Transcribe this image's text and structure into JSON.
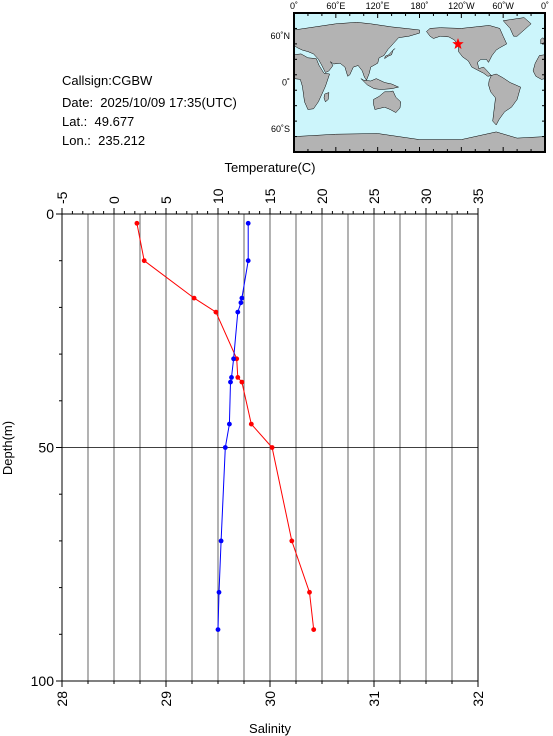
{
  "header": {
    "callsign": "Callsign:CGBW",
    "date": "Date:  2025/10/09 17:35(UTC)",
    "lat": "Lat.:  49.677",
    "lon": "Lon.:  235.212"
  },
  "map": {
    "lon_labels": [
      "0˚",
      "60˚E",
      "120˚E",
      "180˚",
      "120˚W",
      "60˚W",
      "0˚"
    ],
    "lat_labels": [
      "60˚N",
      "0˚",
      "60˚S"
    ],
    "ocean_color": "#ccf5fb",
    "land_color": "#b3b3b3",
    "marker_color": "#ff0000",
    "marker_icon": "star-icon",
    "station": {
      "lat": 49.677,
      "lon": 235.212
    }
  },
  "chart_data": {
    "type": "scatter",
    "title": "",
    "top_axis": {
      "label": "Temperature(C)",
      "range": [
        -5,
        35
      ],
      "ticks": [
        "-5",
        "0",
        "5",
        "10",
        "15",
        "20",
        "25",
        "30",
        "35"
      ]
    },
    "bottom_axis": {
      "label": "Salinity",
      "range": [
        28,
        32
      ],
      "ticks": [
        "28",
        "29",
        "30",
        "31",
        "32"
      ]
    },
    "y_axis": {
      "label": "Depth(m)",
      "range": [
        0,
        100
      ],
      "inverted": true,
      "ticks": [
        "0",
        "50",
        "100"
      ]
    },
    "grid": true,
    "series": [
      {
        "color": "#ff0000",
        "axis": "top",
        "points": [
          {
            "x": 2.2,
            "y": 2
          },
          {
            "x": 2.9,
            "y": 10
          },
          {
            "x": 7.7,
            "y": 18
          },
          {
            "x": 9.8,
            "y": 21
          },
          {
            "x": 11.8,
            "y": 31
          },
          {
            "x": 11.9,
            "y": 35
          },
          {
            "x": 12.3,
            "y": 36
          },
          {
            "x": 13.2,
            "y": 45
          },
          {
            "x": 15.2,
            "y": 50
          },
          {
            "x": 17.1,
            "y": 70
          },
          {
            "x": 18.8,
            "y": 81
          },
          {
            "x": 19.2,
            "y": 89
          }
        ]
      },
      {
        "color": "#0000ff",
        "axis": "bottom",
        "points": [
          {
            "x": 29.79,
            "y": 2
          },
          {
            "x": 29.79,
            "y": 10
          },
          {
            "x": 29.73,
            "y": 18
          },
          {
            "x": 29.72,
            "y": 19
          },
          {
            "x": 29.69,
            "y": 21
          },
          {
            "x": 29.65,
            "y": 31
          },
          {
            "x": 29.63,
            "y": 35
          },
          {
            "x": 29.62,
            "y": 36
          },
          {
            "x": 29.61,
            "y": 45
          },
          {
            "x": 29.57,
            "y": 50
          },
          {
            "x": 29.53,
            "y": 70
          },
          {
            "x": 29.51,
            "y": 81
          },
          {
            "x": 29.5,
            "y": 89
          }
        ]
      }
    ]
  }
}
